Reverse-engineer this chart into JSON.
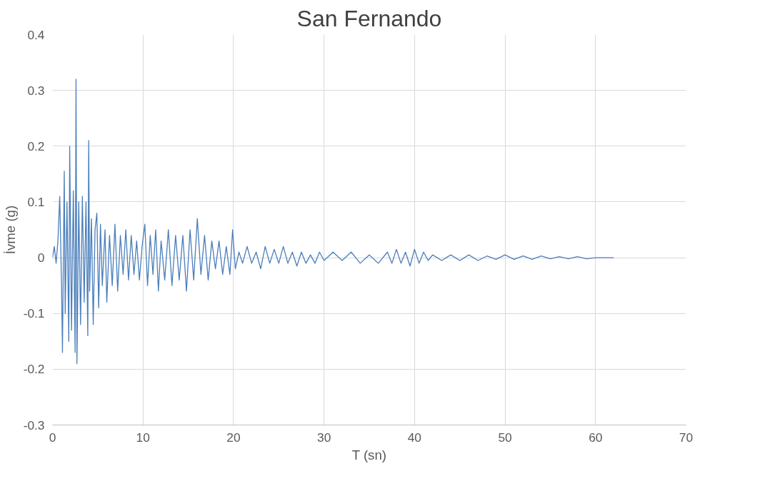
{
  "chart_data": {
    "type": "line",
    "title": "San Fernando",
    "xlabel": "T (sn)",
    "ylabel": "İvme (g)",
    "xlim": [
      0,
      70
    ],
    "xticks": [
      0,
      10,
      20,
      30,
      40,
      50,
      60,
      70
    ],
    "ylim": [
      -0.3,
      0.4
    ],
    "yticks": [
      -0.3,
      -0.2,
      -0.1,
      0,
      0.1,
      0.2,
      0.3,
      0.4
    ],
    "grid": true,
    "series": [
      {
        "color": "#4a7ebb",
        "x": [
          0,
          0.2,
          0.4,
          0.6,
          0.8,
          1.0,
          1.1,
          1.3,
          1.4,
          1.6,
          1.8,
          1.9,
          2.1,
          2.3,
          2.5,
          2.6,
          2.7,
          2.9,
          3.1,
          3.3,
          3.5,
          3.7,
          3.9,
          4.0,
          4.1,
          4.3,
          4.5,
          4.7,
          4.9,
          5.1,
          5.3,
          5.5,
          5.8,
          6.0,
          6.3,
          6.6,
          6.9,
          7.2,
          7.5,
          7.8,
          8.1,
          8.4,
          8.7,
          9.0,
          9.3,
          9.6,
          9.9,
          10.2,
          10.5,
          10.8,
          11.1,
          11.4,
          11.7,
          12.0,
          12.4,
          12.8,
          13.2,
          13.6,
          14.0,
          14.4,
          14.8,
          15.2,
          15.6,
          16.0,
          16.4,
          16.8,
          17.2,
          17.6,
          18.0,
          18.4,
          18.8,
          19.2,
          19.6,
          19.9,
          20.2,
          20.6,
          21.0,
          21.5,
          22.0,
          22.5,
          23.0,
          23.5,
          24.0,
          24.5,
          25.0,
          25.5,
          26.0,
          26.5,
          27.0,
          27.5,
          28.0,
          28.5,
          29.0,
          29.5,
          30.0,
          31.0,
          32.0,
          33.0,
          34.0,
          35.0,
          36.0,
          37.0,
          37.5,
          38.0,
          38.5,
          39.0,
          39.5,
          40.0,
          40.5,
          41.0,
          41.5,
          42.0,
          43.0,
          44.0,
          45.0,
          46.0,
          47.0,
          48.0,
          49.0,
          50.0,
          51.0,
          52.0,
          53.0,
          54.0,
          55.0,
          56.0,
          57.0,
          58.0,
          59.0,
          60.0,
          61.0,
          62.0
        ],
        "values": [
          0,
          0.02,
          -0.01,
          0.03,
          0.11,
          -0.05,
          -0.17,
          0.155,
          -0.1,
          0.1,
          -0.15,
          0.2,
          -0.13,
          0.12,
          -0.17,
          0.32,
          -0.19,
          0.1,
          -0.12,
          0.11,
          -0.08,
          0.1,
          -0.14,
          0.21,
          -0.06,
          0.07,
          -0.12,
          0.05,
          0.08,
          -0.09,
          0.06,
          -0.05,
          0.05,
          -0.08,
          0.04,
          -0.05,
          0.06,
          -0.06,
          0.04,
          -0.03,
          0.05,
          -0.04,
          0.04,
          -0.03,
          0.03,
          -0.04,
          0.02,
          0.06,
          -0.05,
          0.04,
          -0.03,
          0.05,
          -0.06,
          0.03,
          -0.04,
          0.05,
          -0.05,
          0.04,
          -0.04,
          0.04,
          -0.06,
          0.05,
          -0.04,
          0.07,
          -0.03,
          0.04,
          -0.04,
          0.03,
          -0.02,
          0.03,
          -0.03,
          0.02,
          -0.03,
          0.05,
          -0.02,
          0.01,
          -0.01,
          0.02,
          -0.01,
          0.01,
          -0.02,
          0.02,
          -0.01,
          0.015,
          -0.01,
          0.02,
          -0.01,
          0.01,
          -0.015,
          0.01,
          -0.01,
          0.005,
          -0.01,
          0.01,
          -0.005,
          0.01,
          -0.005,
          0.01,
          -0.01,
          0.005,
          -0.01,
          0.01,
          -0.01,
          0.015,
          -0.01,
          0.01,
          -0.015,
          0.015,
          -0.01,
          0.01,
          -0.005,
          0.005,
          -0.005,
          0.005,
          -0.005,
          0.005,
          -0.005,
          0.003,
          -0.003,
          0.005,
          -0.003,
          0.003,
          -0.003,
          0.003,
          -0.002,
          0.002,
          -0.002,
          0.002,
          -0.002,
          0,
          0,
          0
        ]
      }
    ]
  }
}
